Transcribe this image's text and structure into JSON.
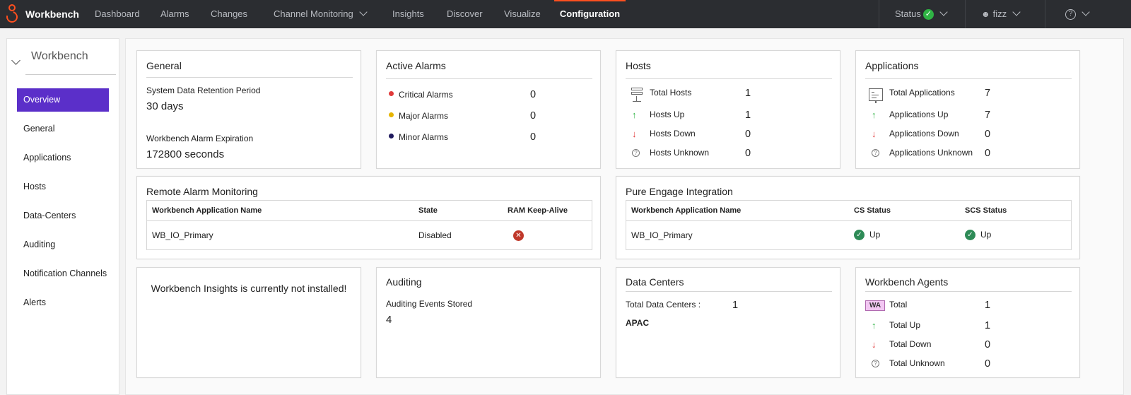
{
  "app": {
    "brand": "Workbench"
  },
  "nav": {
    "dashboard": "Dashboard",
    "alarms": "Alarms",
    "changes": "Changes",
    "channel_monitoring": "Channel Monitoring",
    "insights": "Insights",
    "discover": "Discover",
    "visualize": "Visualize",
    "configuration": "Configuration",
    "status": "Status",
    "user": "fizz",
    "help_glyph": "?"
  },
  "colors": {
    "accent": "#ff4f1f",
    "selected": "#5b2fc9",
    "ok": "#2fb344",
    "critical": "#e03a3a",
    "major": "#e6b400",
    "minor": "#1f1a5e"
  },
  "sidebar": {
    "title": "Workbench",
    "items": [
      {
        "label": "Overview",
        "active": true
      },
      {
        "label": "General"
      },
      {
        "label": "Applications"
      },
      {
        "label": "Hosts"
      },
      {
        "label": "Data-Centers"
      },
      {
        "label": "Auditing"
      },
      {
        "label": "Notification Channels"
      },
      {
        "label": "Alerts"
      }
    ]
  },
  "general": {
    "title": "General",
    "retention_label": "System Data Retention Period",
    "retention_value": "30 days",
    "expiration_label": "Workbench Alarm Expiration",
    "expiration_value": "172800 seconds"
  },
  "active_alarms": {
    "title": "Active Alarms",
    "critical_label": "Critical Alarms",
    "critical_value": "0",
    "major_label": "Major Alarms",
    "major_value": "0",
    "minor_label": "Minor Alarms",
    "minor_value": "0"
  },
  "hosts": {
    "title": "Hosts",
    "total_label": "Total Hosts",
    "total_value": "1",
    "up_label": "Hosts Up",
    "up_value": "1",
    "down_label": "Hosts Down",
    "down_value": "0",
    "unknown_label": "Hosts Unknown",
    "unknown_value": "0"
  },
  "applications": {
    "title": "Applications",
    "total_label": "Total Applications",
    "total_value": "7",
    "up_label": "Applications Up",
    "up_value": "7",
    "down_label": "Applications Down",
    "down_value": "0",
    "unknown_label": "Applications Unknown",
    "unknown_value": "0"
  },
  "remote_alarm": {
    "title": "Remote Alarm Monitoring",
    "headers": [
      "Workbench Application Name",
      "State",
      "RAM Keep-Alive"
    ],
    "rows": [
      {
        "name": "WB_IO_Primary",
        "state": "Disabled",
        "keepalive": "✕"
      }
    ]
  },
  "pure_engage": {
    "title": "Pure Engage Integration",
    "headers": [
      "Workbench Application Name",
      "CS Status",
      "SCS Status"
    ],
    "rows": [
      {
        "name": "WB_IO_Primary",
        "cs_status": "Up",
        "scs_status": "Up"
      }
    ]
  },
  "insights": {
    "message": "Workbench Insights is currently not installed!"
  },
  "auditing": {
    "title": "Auditing",
    "events_label": "Auditing Events Stored",
    "events_value": "4"
  },
  "data_centers": {
    "title": "Data Centers",
    "total_label": "Total Data Centers :",
    "total_value": "1",
    "names": [
      "APAC"
    ]
  },
  "agents": {
    "title": "Workbench Agents",
    "badge": "WA",
    "total_label": "Total",
    "total_value": "1",
    "up_label": "Total Up",
    "up_value": "1",
    "down_label": "Total Down",
    "down_value": "0",
    "unknown_label": "Total Unknown",
    "unknown_value": "0"
  },
  "icons": {
    "up_arrow": "↑",
    "down_arrow": "↓",
    "question": "?",
    "check": "✓"
  }
}
